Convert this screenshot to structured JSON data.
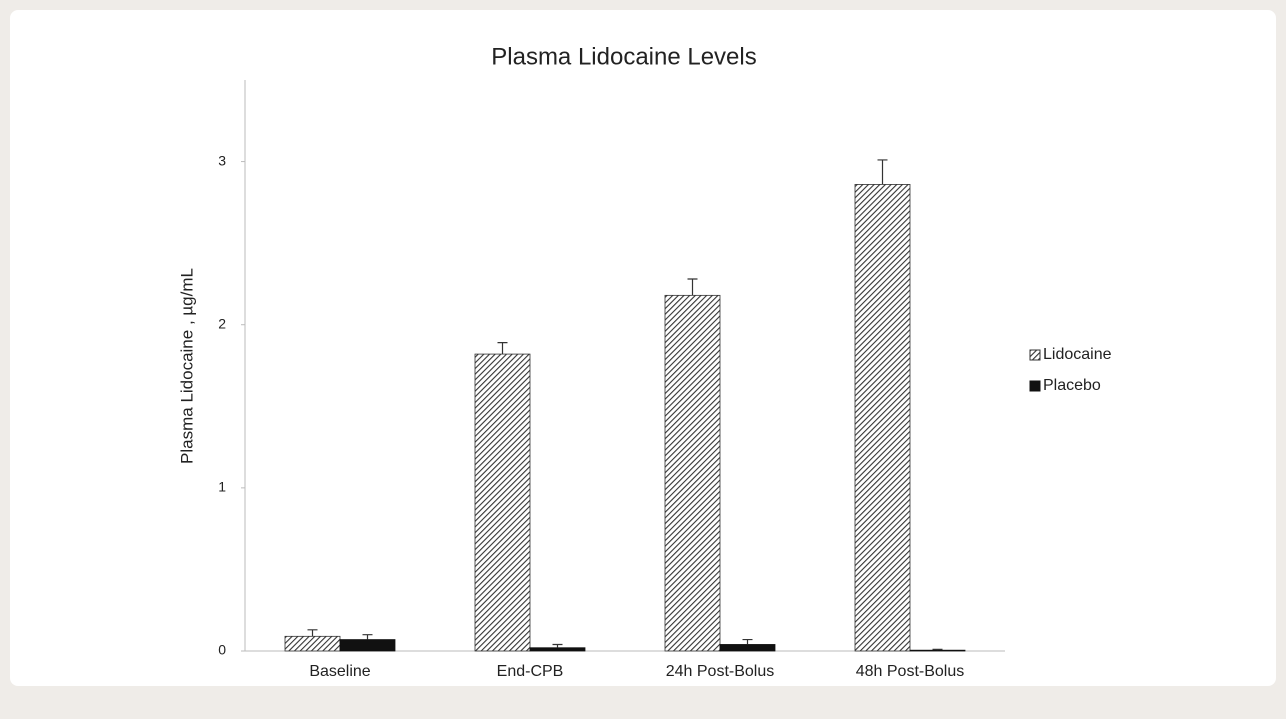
{
  "chart_data": {
    "type": "bar",
    "title": "Plasma Lidocaine Levels",
    "y_label": "Plasma  Lidocaine , µg/mL",
    "categories": [
      "Baseline",
      "End-CPB",
      "24h Post-Bolus",
      "48h Post-Bolus"
    ],
    "series": [
      {
        "name": "Lidocaine",
        "color": "#333333",
        "hatch": true,
        "values": [
          0.09,
          1.82,
          2.18,
          2.86
        ],
        "errors": [
          0.04,
          0.07,
          0.1,
          0.15
        ]
      },
      {
        "name": "Placebo",
        "color": "#111111",
        "hatch": false,
        "values": [
          0.07,
          0.02,
          0.04,
          0.005
        ],
        "errors": [
          0.03,
          0.02,
          0.03,
          0.005
        ]
      }
    ],
    "ylim": [
      0,
      3.5
    ],
    "yticks": [
      0,
      1,
      2,
      3
    ],
    "grid": false,
    "legend": "right"
  }
}
